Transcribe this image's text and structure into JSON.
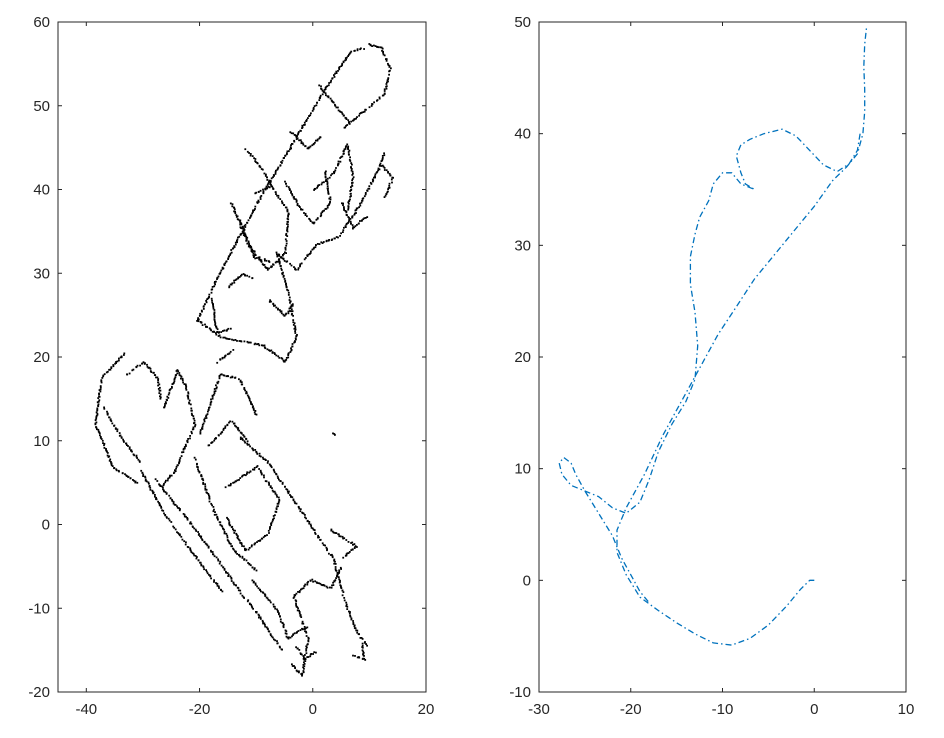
{
  "chart_data": [
    {
      "type": "scatter",
      "title": "",
      "xlabel": "",
      "ylabel": "",
      "xlim": [
        -45,
        20
      ],
      "ylim": [
        -20,
        60
      ],
      "xticks": [
        -40,
        -20,
        0,
        20
      ],
      "yticks": [
        -20,
        -10,
        0,
        10,
        20,
        30,
        40,
        50,
        60
      ],
      "grid": false,
      "legend": "none",
      "series": [
        {
          "color": "#000000",
          "marker": "dot",
          "description_segments": [
            [
              [
                -33.5,
                20.5
              ],
              [
                -37.5,
                17.5
              ],
              [
                -38.5,
                12.0
              ],
              [
                -35.5,
                7.0
              ],
              [
                -31.0,
                5.0
              ]
            ],
            [
              [
                -37.0,
                14.0
              ],
              [
                -34.0,
                10.5
              ],
              [
                -30.5,
                7.5
              ]
            ],
            [
              [
                -33.0,
                18.0
              ],
              [
                -30.0,
                19.5
              ],
              [
                -27.5,
                17.5
              ],
              [
                -27.0,
                15.0
              ]
            ],
            [
              [
                -30.5,
                6.5
              ],
              [
                -26.0,
                1.0
              ],
              [
                -20.0,
                -4.5
              ],
              [
                -16.0,
                -8.0
              ]
            ],
            [
              [
                -28.0,
                5.5
              ],
              [
                -22.0,
                0.5
              ],
              [
                -17.0,
                -4.0
              ],
              [
                -14.0,
                -7.0
              ],
              [
                -10.0,
                -10.5
              ],
              [
                -5.5,
                -15.0
              ]
            ],
            [
              [
                -26.5,
                14.0
              ],
              [
                -24.0,
                18.5
              ],
              [
                -22.5,
                16.5
              ],
              [
                -21.0,
                12.0
              ],
              [
                -24.5,
                6.5
              ],
              [
                -27.0,
                4.5
              ]
            ],
            [
              [
                -20.0,
                11.0
              ],
              [
                -16.5,
                18.0
              ],
              [
                -13.0,
                17.5
              ],
              [
                -10.0,
                13.0
              ]
            ],
            [
              [
                -18.5,
                9.5
              ],
              [
                -14.5,
                12.5
              ],
              [
                -11.5,
                10.0
              ]
            ],
            [
              [
                -21.0,
                8.0
              ],
              [
                -17.5,
                1.5
              ],
              [
                -14.0,
                -3.0
              ],
              [
                -10.0,
                -5.5
              ]
            ],
            [
              [
                -13.0,
                10.5
              ],
              [
                -8.0,
                7.5
              ],
              [
                -3.5,
                3.0
              ],
              [
                1.0,
                -1.5
              ],
              [
                3.5,
                -4.0
              ],
              [
                5.5,
                -9.0
              ],
              [
                7.5,
                -12.5
              ],
              [
                9.5,
                -14.5
              ]
            ],
            [
              [
                -15.5,
                4.5
              ],
              [
                -10.0,
                7.0
              ],
              [
                -6.0,
                3.0
              ],
              [
                -8.0,
                -1.0
              ],
              [
                -12.0,
                -3.0
              ],
              [
                -15.5,
                1.0
              ]
            ],
            [
              [
                -4.0,
                -16.5
              ],
              [
                -2.0,
                -18.0
              ],
              [
                -1.0,
                -13.5
              ],
              [
                -3.5,
                -8.5
              ],
              [
                -0.5,
                -6.5
              ],
              [
                3.0,
                -7.5
              ],
              [
                5.0,
                -5.0
              ]
            ],
            [
              [
                -11.0,
                -6.5
              ],
              [
                -6.5,
                -10.0
              ],
              [
                -4.5,
                -13.5
              ],
              [
                -1.0,
                -12.0
              ]
            ],
            [
              [
                -20.5,
                24.5
              ],
              [
                -16.5,
                22.5
              ],
              [
                -13.0,
                22.0
              ],
              [
                -9.0,
                21.5
              ],
              [
                -5.0,
                19.5
              ],
              [
                -3.0,
                22.5
              ],
              [
                -4.5,
                28.0
              ],
              [
                -6.5,
                32.5
              ]
            ],
            [
              [
                -20.5,
                24.5
              ],
              [
                -17.0,
                29.5
              ],
              [
                -13.5,
                34.0
              ],
              [
                -9.5,
                39.0
              ],
              [
                -5.5,
                43.5
              ],
              [
                -2.0,
                47.5
              ],
              [
                1.5,
                51.5
              ],
              [
                4.0,
                54.0
              ],
              [
                6.5,
                56.5
              ],
              [
                9.0,
                57.0
              ]
            ],
            [
              [
                -17.0,
                19.5
              ],
              [
                -14.0,
                21.0
              ]
            ],
            [
              [
                -6.5,
                32.5
              ],
              [
                -3.0,
                30.5
              ],
              [
                0.5,
                33.5
              ],
              [
                4.5,
                34.5
              ],
              [
                7.5,
                37.5
              ],
              [
                9.5,
                40.0
              ],
              [
                11.5,
                42.5
              ],
              [
                12.5,
                44.5
              ]
            ],
            [
              [
                5.5,
                47.5
              ],
              [
                9.0,
                49.5
              ],
              [
                12.5,
                51.5
              ],
              [
                13.5,
                54.5
              ],
              [
                12.0,
                57.0
              ],
              [
                9.5,
                57.5
              ]
            ],
            [
              [
                1.0,
                52.5
              ],
              [
                4.0,
                50.0
              ],
              [
                6.5,
                48.0
              ]
            ],
            [
              [
                -14.5,
                38.5
              ],
              [
                -11.5,
                33.5
              ],
              [
                -8.0,
                30.5
              ],
              [
                -5.0,
                32.5
              ],
              [
                -4.5,
                37.5
              ],
              [
                -7.5,
                40.5
              ],
              [
                -11.0,
                39.5
              ]
            ],
            [
              [
                -13.0,
                36.5
              ],
              [
                -10.5,
                32.0
              ],
              [
                -7.5,
                31.5
              ]
            ],
            [
              [
                -5.0,
                41.0
              ],
              [
                -2.5,
                38.0
              ],
              [
                0.0,
                36.0
              ],
              [
                3.0,
                38.5
              ],
              [
                2.0,
                42.5
              ]
            ],
            [
              [
                0.0,
                40.0
              ],
              [
                3.5,
                42.0
              ],
              [
                6.0,
                45.5
              ],
              [
                7.0,
                41.5
              ],
              [
                6.0,
                37.5
              ]
            ],
            [
              [
                -15.0,
                28.5
              ],
              [
                -12.5,
                30.0
              ],
              [
                -10.5,
                29.5
              ]
            ],
            [
              [
                -18.0,
                27.0
              ],
              [
                -17.0,
                23.0
              ],
              [
                -14.5,
                23.5
              ]
            ],
            [
              [
                -8.0,
                27.0
              ],
              [
                -5.0,
                25.0
              ],
              [
                -3.5,
                26.5
              ]
            ],
            [
              [
                -12.0,
                45.0
              ],
              [
                -9.0,
                42.5
              ],
              [
                -7.0,
                40.0
              ]
            ],
            [
              [
                -4.0,
                47.0
              ],
              [
                -1.0,
                45.0
              ],
              [
                1.5,
                46.5
              ]
            ],
            [
              [
                5.0,
                38.5
              ],
              [
                7.0,
                35.5
              ],
              [
                9.5,
                37.0
              ]
            ],
            [
              [
                12.0,
                43.0
              ],
              [
                14.0,
                41.5
              ],
              [
                12.5,
                39.0
              ]
            ],
            [
              [
                -3.0,
                -14.5
              ],
              [
                -1.5,
                -16.0
              ],
              [
                0.5,
                -15.0
              ]
            ],
            [
              [
                3.0,
                -0.5
              ],
              [
                7.5,
                -2.5
              ],
              [
                5.0,
                -4.0
              ]
            ],
            [
              [
                7.0,
                -15.5
              ],
              [
                9.0,
                -16.0
              ],
              [
                8.5,
                -14.0
              ]
            ],
            [
              [
                3.5,
                11.0
              ],
              [
                4.0,
                10.5
              ]
            ]
          ]
        }
      ]
    },
    {
      "type": "line",
      "title": "",
      "xlabel": "",
      "ylabel": "",
      "xlim": [
        -30,
        10
      ],
      "ylim": [
        -10,
        50
      ],
      "xticks": [
        -30,
        -20,
        -10,
        0,
        10
      ],
      "yticks": [
        -10,
        0,
        10,
        20,
        30,
        40,
        50
      ],
      "grid": false,
      "legend": "none",
      "series": [
        {
          "color": "#0072BD",
          "line_style": "dash-dot",
          "points": [
            [
              0.0,
              0.0
            ],
            [
              -0.5,
              0.0
            ],
            [
              -1.5,
              -0.8
            ],
            [
              -3.0,
              -2.3
            ],
            [
              -5.0,
              -4.0
            ],
            [
              -7.0,
              -5.2
            ],
            [
              -9.0,
              -5.8
            ],
            [
              -11.0,
              -5.6
            ],
            [
              -13.0,
              -4.8
            ],
            [
              -15.0,
              -3.8
            ],
            [
              -17.0,
              -2.7
            ],
            [
              -19.0,
              -1.5
            ],
            [
              -20.5,
              0.5
            ],
            [
              -21.5,
              2.5
            ],
            [
              -21.5,
              4.5
            ],
            [
              -20.5,
              6.5
            ],
            [
              -18.5,
              9.5
            ],
            [
              -16.5,
              13.0
            ],
            [
              -14.5,
              16.0
            ],
            [
              -12.5,
              19.0
            ],
            [
              -10.5,
              22.0
            ],
            [
              -8.5,
              24.5
            ],
            [
              -6.5,
              27.0
            ],
            [
              -4.5,
              29.0
            ],
            [
              -2.0,
              31.5
            ],
            [
              0.0,
              33.5
            ],
            [
              2.0,
              35.8
            ],
            [
              3.5,
              37.0
            ],
            [
              4.7,
              38.2
            ],
            [
              5.3,
              40.0
            ],
            [
              5.5,
              42.0
            ],
            [
              5.5,
              44.0
            ],
            [
              5.4,
              46.0
            ],
            [
              5.5,
              48.0
            ],
            [
              5.7,
              49.5
            ]
          ]
        },
        {
          "color": "#0072BD",
          "line_style": "dash-dot",
          "points": [
            [
              5.0,
              40.0
            ],
            [
              4.7,
              38.5
            ],
            [
              3.8,
              37.3
            ],
            [
              2.5,
              36.6
            ],
            [
              1.0,
              37.2
            ],
            [
              -0.5,
              38.5
            ],
            [
              -2.0,
              39.8
            ],
            [
              -3.5,
              40.4
            ],
            [
              -5.5,
              40.0
            ],
            [
              -7.0,
              39.5
            ],
            [
              -8.0,
              39.0
            ],
            [
              -8.5,
              38.0
            ],
            [
              -8.0,
              36.5
            ],
            [
              -7.5,
              35.5
            ],
            [
              -6.5,
              35.0
            ],
            [
              -8.0,
              35.5
            ],
            [
              -9.0,
              36.5
            ],
            [
              -10.0,
              36.5
            ],
            [
              -11.0,
              35.5
            ],
            [
              -11.5,
              34.0
            ],
            [
              -12.5,
              32.5
            ],
            [
              -13.0,
              31.0
            ],
            [
              -13.5,
              29.0
            ],
            [
              -13.5,
              26.5
            ],
            [
              -13.0,
              24.0
            ],
            [
              -12.7,
              21.0
            ],
            [
              -13.0,
              18.0
            ],
            [
              -14.0,
              16.0
            ],
            [
              -15.5,
              14.0
            ],
            [
              -17.0,
              11.5
            ],
            [
              -18.0,
              9.0
            ],
            [
              -19.0,
              7.0
            ],
            [
              -20.5,
              6.0
            ],
            [
              -22.0,
              6.5
            ],
            [
              -23.5,
              7.5
            ],
            [
              -25.0,
              8.0
            ],
            [
              -26.5,
              8.5
            ],
            [
              -27.5,
              9.5
            ],
            [
              -27.8,
              10.5
            ],
            [
              -27.3,
              11.0
            ],
            [
              -26.5,
              10.5
            ],
            [
              -26.0,
              9.5
            ],
            [
              -25.0,
              8.0
            ],
            [
              -23.5,
              6.0
            ],
            [
              -22.0,
              4.0
            ],
            [
              -21.0,
              2.0
            ],
            [
              -20.0,
              0.5
            ],
            [
              -19.0,
              -1.0
            ],
            [
              -18.0,
              -2.0
            ]
          ]
        }
      ]
    }
  ]
}
